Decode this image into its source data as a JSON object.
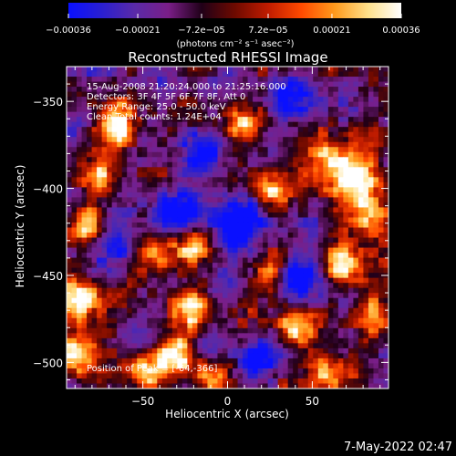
{
  "chart_data": {
    "type": "heatmap",
    "title": "Reconstructed RHESSI Image",
    "xlabel": "Heliocentric X (arcsec)",
    "ylabel": "Heliocentric Y (arcsec)",
    "xlim": [
      -95,
      95
    ],
    "ylim": [
      -515,
      -330
    ],
    "x_ticks": [
      -50,
      0,
      50
    ],
    "x_tick_labels": [
      "−50",
      "0",
      "50"
    ],
    "y_ticks": [
      -350,
      -400,
      -450,
      -500
    ],
    "y_tick_labels": [
      "−350",
      "−400",
      "−450",
      "−500"
    ],
    "colorbar": {
      "range": [
        -0.00036,
        0.00036
      ],
      "tick_values": [
        -0.00036,
        -0.00021,
        -7.2e-05,
        7.2e-05,
        0.00021,
        0.00036
      ],
      "tick_labels": [
        "−0.00036",
        "−0.00021",
        "−7.2e−05",
        "7.2e−05",
        "0.00021",
        "0.00036"
      ],
      "unit_label": "(photons cm⁻² s⁻¹ asec⁻²)",
      "colors": [
        "#0a10ff",
        "#2a1fd0",
        "#5a2aa8",
        "#7a1e88",
        "#200018",
        "#6e0a00",
        "#c01c00",
        "#ff4a00",
        "#ff9a1c",
        "#ffe08a",
        "#ffffff"
      ]
    },
    "annotations": [
      "15-Aug-2008 21:20:24.000 to 21:25:16.000",
      "Detectors: 3F 4F 5F 6F 7F 8F, Att 0",
      "Energy Range: 25.0 - 50.0 keV",
      "Clean     Total counts: 1.24E+04",
      "Position of Peak = [-64,-366]"
    ],
    "peak": {
      "x": -64,
      "y": -366
    },
    "hotspots": [
      {
        "x": -66,
        "y": -366,
        "v": 1.0,
        "s": 9
      },
      {
        "x": -88,
        "y": -465,
        "v": 0.95,
        "s": 10
      },
      {
        "x": -90,
        "y": -495,
        "v": 0.85,
        "s": 9
      },
      {
        "x": 60,
        "y": -385,
        "v": 0.9,
        "s": 10
      },
      {
        "x": 78,
        "y": -395,
        "v": 0.85,
        "s": 10
      },
      {
        "x": 85,
        "y": -420,
        "v": 0.8,
        "s": 9
      },
      {
        "x": 70,
        "y": -445,
        "v": 0.8,
        "s": 9
      },
      {
        "x": 40,
        "y": -480,
        "v": 0.8,
        "s": 8
      },
      {
        "x": 60,
        "y": -505,
        "v": 0.75,
        "s": 9
      },
      {
        "x": -30,
        "y": -495,
        "v": 0.9,
        "s": 8
      },
      {
        "x": -50,
        "y": -505,
        "v": 0.8,
        "s": 8
      },
      {
        "x": -20,
        "y": -470,
        "v": 0.75,
        "s": 8
      },
      {
        "x": -40,
        "y": -440,
        "v": 0.7,
        "s": 9
      },
      {
        "x": -20,
        "y": -432,
        "v": 0.75,
        "s": 7
      },
      {
        "x": 25,
        "y": -400,
        "v": 0.7,
        "s": 8
      },
      {
        "x": 10,
        "y": -365,
        "v": 0.6,
        "s": 8
      },
      {
        "x": -80,
        "y": -420,
        "v": 0.6,
        "s": 8
      },
      {
        "x": -75,
        "y": -395,
        "v": 0.55,
        "s": 8
      },
      {
        "x": 25,
        "y": -450,
        "v": 0.6,
        "s": 7
      },
      {
        "x": 85,
        "y": -470,
        "v": 0.6,
        "s": 8
      },
      {
        "x": -10,
        "y": -510,
        "v": 0.65,
        "s": 7
      }
    ],
    "coldspots": [
      {
        "x": 5,
        "y": -420,
        "v": 0.8,
        "s": 12
      },
      {
        "x": -30,
        "y": -415,
        "v": 0.6,
        "s": 10
      },
      {
        "x": 45,
        "y": -450,
        "v": 0.7,
        "s": 9
      },
      {
        "x": -65,
        "y": -430,
        "v": 0.6,
        "s": 8
      },
      {
        "x": 15,
        "y": -500,
        "v": 0.6,
        "s": 8
      },
      {
        "x": 40,
        "y": -350,
        "v": 0.5,
        "s": 9
      },
      {
        "x": -15,
        "y": -380,
        "v": 0.5,
        "s": 9
      }
    ]
  },
  "footer": {
    "date": "7-May-2022 02:47"
  }
}
